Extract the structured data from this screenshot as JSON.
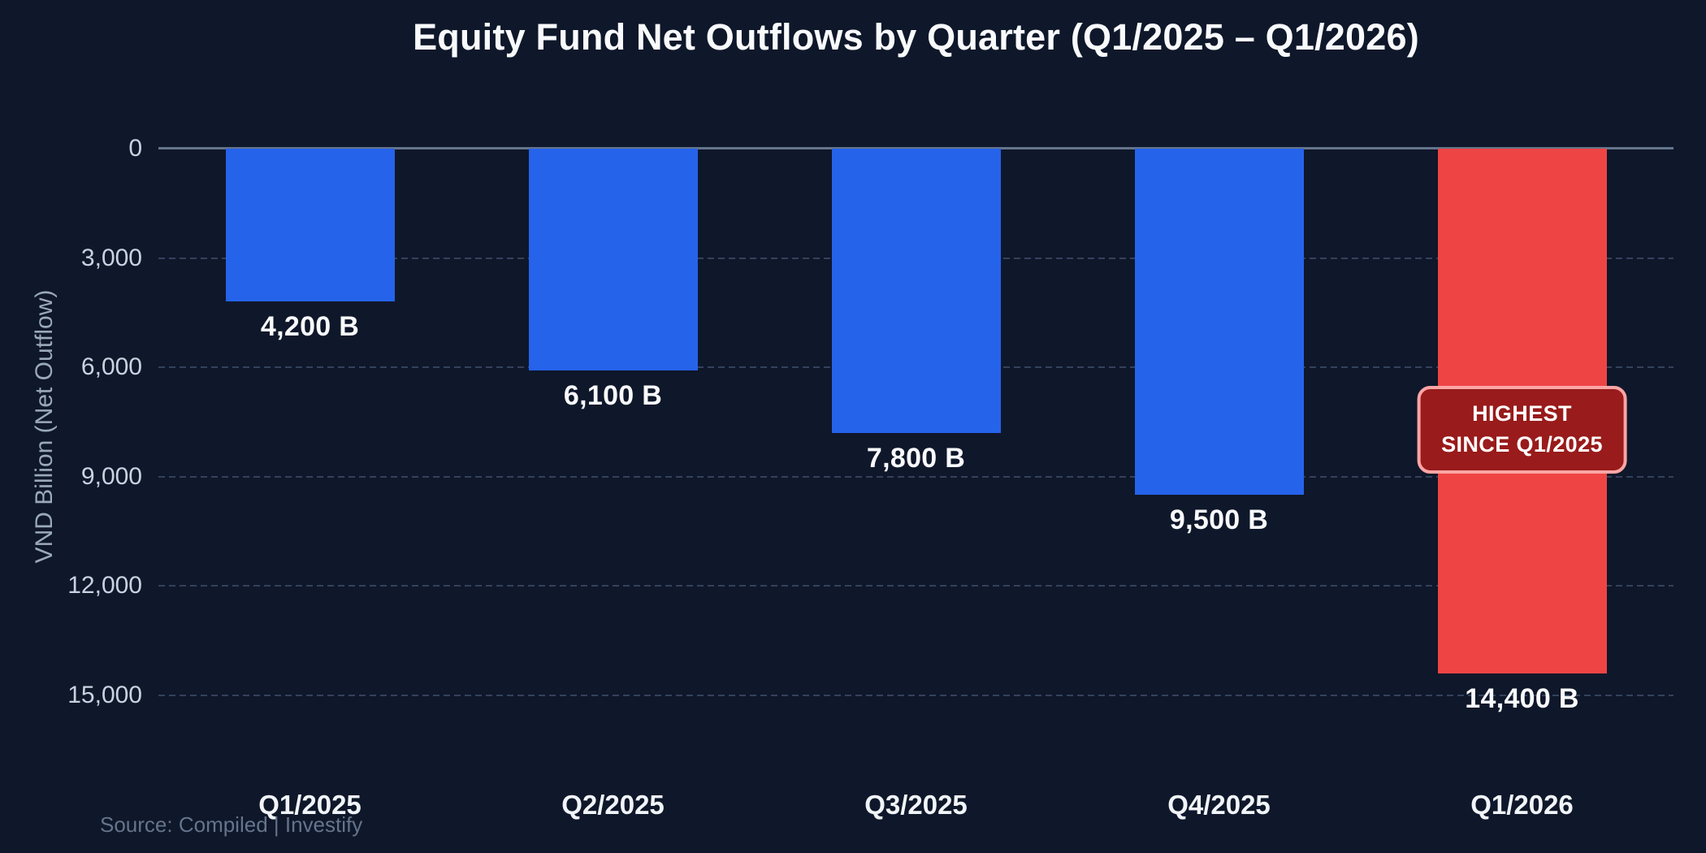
{
  "page": {
    "background": "#0f172a"
  },
  "chart_data": {
    "type": "bar",
    "orientation": "vertical-downward (net outflows drawn as bars extending down from the zero line)",
    "title": "Equity Fund Net Outflows by Quarter (Q1/2025 – Q1/2026)",
    "categories": [
      "Q1/2025",
      "Q2/2025",
      "Q3/2025",
      "Q4/2025",
      "Q1/2026"
    ],
    "values": [
      4200,
      6100,
      7800,
      9500,
      14400
    ],
    "value_labels": [
      "4,200 B",
      "6,100 B",
      "7,800 B",
      "9,500 B",
      "14,400 B"
    ],
    "bar_colors": [
      "#2563eb",
      "#2563eb",
      "#2563eb",
      "#2563eb",
      "#ef4444"
    ],
    "xlabel": "",
    "ylabel": "VND Billion (Net Outflow)",
    "ylim": [
      0,
      15000
    ],
    "y_ticks": [
      0,
      3000,
      6000,
      9000,
      12000,
      15000
    ],
    "y_tick_labels": [
      "0",
      "3,000",
      "6,000",
      "9,000",
      "12,000",
      "15,000"
    ],
    "grid": "horizontal dashed gridlines at each tick; solid line at 0",
    "legend": "none",
    "annotation": {
      "attached_to_category": "Q1/2026",
      "bar_index": 4,
      "lines": [
        "HIGHEST",
        "SINCE Q1/2025"
      ]
    },
    "source_note": "Source: Compiled | Investify",
    "colors": {
      "background": "#0f172a",
      "bar_blue": "#2563eb",
      "bar_red": "#ef4444",
      "badge_bg": "#991b1b",
      "badge_border": "#fca5a5",
      "badge_text": "#ffffff",
      "gridline": "#33415c",
      "zero_line": "#64748b",
      "tick_text": "#c9d3e0",
      "axis_title_text": "#9aa9bc",
      "value_label_text": "#f8fafc",
      "x_label_text": "#f1f5f9",
      "title_text": "#f8fafc",
      "source_text": "#64748b"
    }
  }
}
